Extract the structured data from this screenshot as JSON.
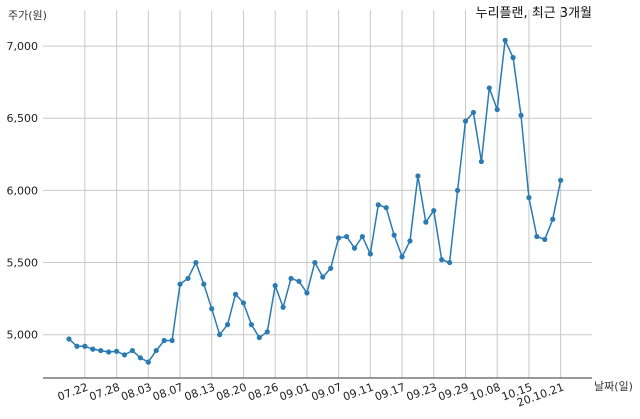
{
  "chart_data": {
    "type": "line",
    "title": "누리플랜, 최근 3개월",
    "xlabel": "날짜(일)",
    "ylabel": "주가(원)",
    "ylim": [
      4700,
      7250
    ],
    "yticks": [
      "5,000",
      "5,500",
      "6,000",
      "6,500",
      "7,000"
    ],
    "ytick_values": [
      5000,
      5500,
      6000,
      6500,
      7000
    ],
    "xticks": [
      "07.22",
      "07.28",
      "08.03",
      "08.07",
      "08.13",
      "08.20",
      "08.26",
      "09.01",
      "09.07",
      "09.11",
      "09.17",
      "09.23",
      "09.29",
      "10.08",
      "10.15",
      "20.10.21"
    ],
    "xtick_indices": [
      2,
      6,
      10,
      14,
      18,
      22,
      26,
      30,
      34,
      38,
      42,
      46,
      50,
      54,
      58,
      62
    ],
    "grid": true,
    "series_color": "#2a7ab4",
    "series": [
      {
        "values": [
          4970,
          4920,
          4920,
          4900,
          4890,
          4880,
          4885,
          4860,
          4890,
          4840,
          4810,
          4890,
          4960,
          4960,
          5350,
          5390,
          5500,
          5350,
          5180,
          5000,
          5070,
          5280,
          5220,
          5070,
          4980,
          5020,
          5340,
          5190,
          5390,
          5370,
          5290,
          5500,
          5400,
          5460,
          5670,
          5680,
          5600,
          5680,
          5560,
          5900,
          5880,
          5690,
          5540,
          5650,
          6100,
          5780,
          5860,
          5520,
          5500,
          6000,
          6480,
          6540,
          6200,
          6710,
          6560,
          7040,
          6920,
          6520,
          5950,
          5680,
          5660,
          5800,
          6070
        ]
      }
    ]
  }
}
